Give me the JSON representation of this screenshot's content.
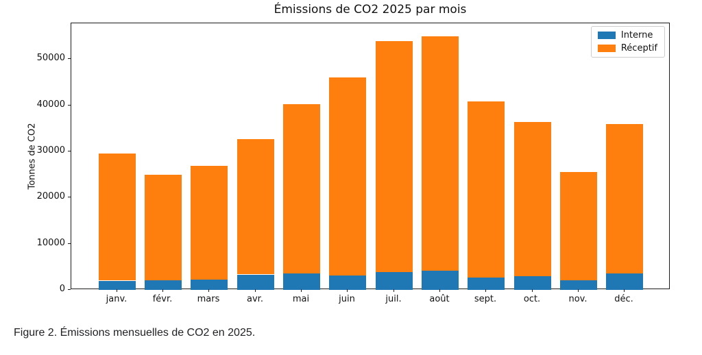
{
  "figure": {
    "caption": "Figure 2. Émissions mensuelles de CO2 en 2025."
  },
  "chart_data": {
    "type": "bar",
    "stacked": true,
    "title": "Émissions de CO2 2025 par mois",
    "xlabel": "",
    "ylabel": "Tonnes de CO2",
    "categories": [
      "janv.",
      "févr.",
      "mars",
      "avr.",
      "mai",
      "juin",
      "juil.",
      "août",
      "sept.",
      "oct.",
      "nov.",
      "déc."
    ],
    "series": [
      {
        "name": "Interne",
        "color": "#1f77b4",
        "values": [
          2000,
          2100,
          2200,
          3300,
          3600,
          3100,
          3800,
          4300,
          2700,
          2900,
          2200,
          3600
        ]
      },
      {
        "name": "Réceptif",
        "color": "#ff7f0e",
        "values": [
          27500,
          22800,
          24600,
          29300,
          36700,
          42900,
          50100,
          50700,
          38200,
          33400,
          23400,
          32400
        ]
      }
    ],
    "yticks": [
      0,
      10000,
      20000,
      30000,
      40000,
      50000
    ],
    "ylim": [
      0,
      57750
    ],
    "bar_width_fraction": 0.8,
    "grid": false,
    "legend_position": "upper right",
    "colors": {
      "axis": "#1a1a1a",
      "legend_border": "#cccccc",
      "text": "#111111"
    }
  }
}
